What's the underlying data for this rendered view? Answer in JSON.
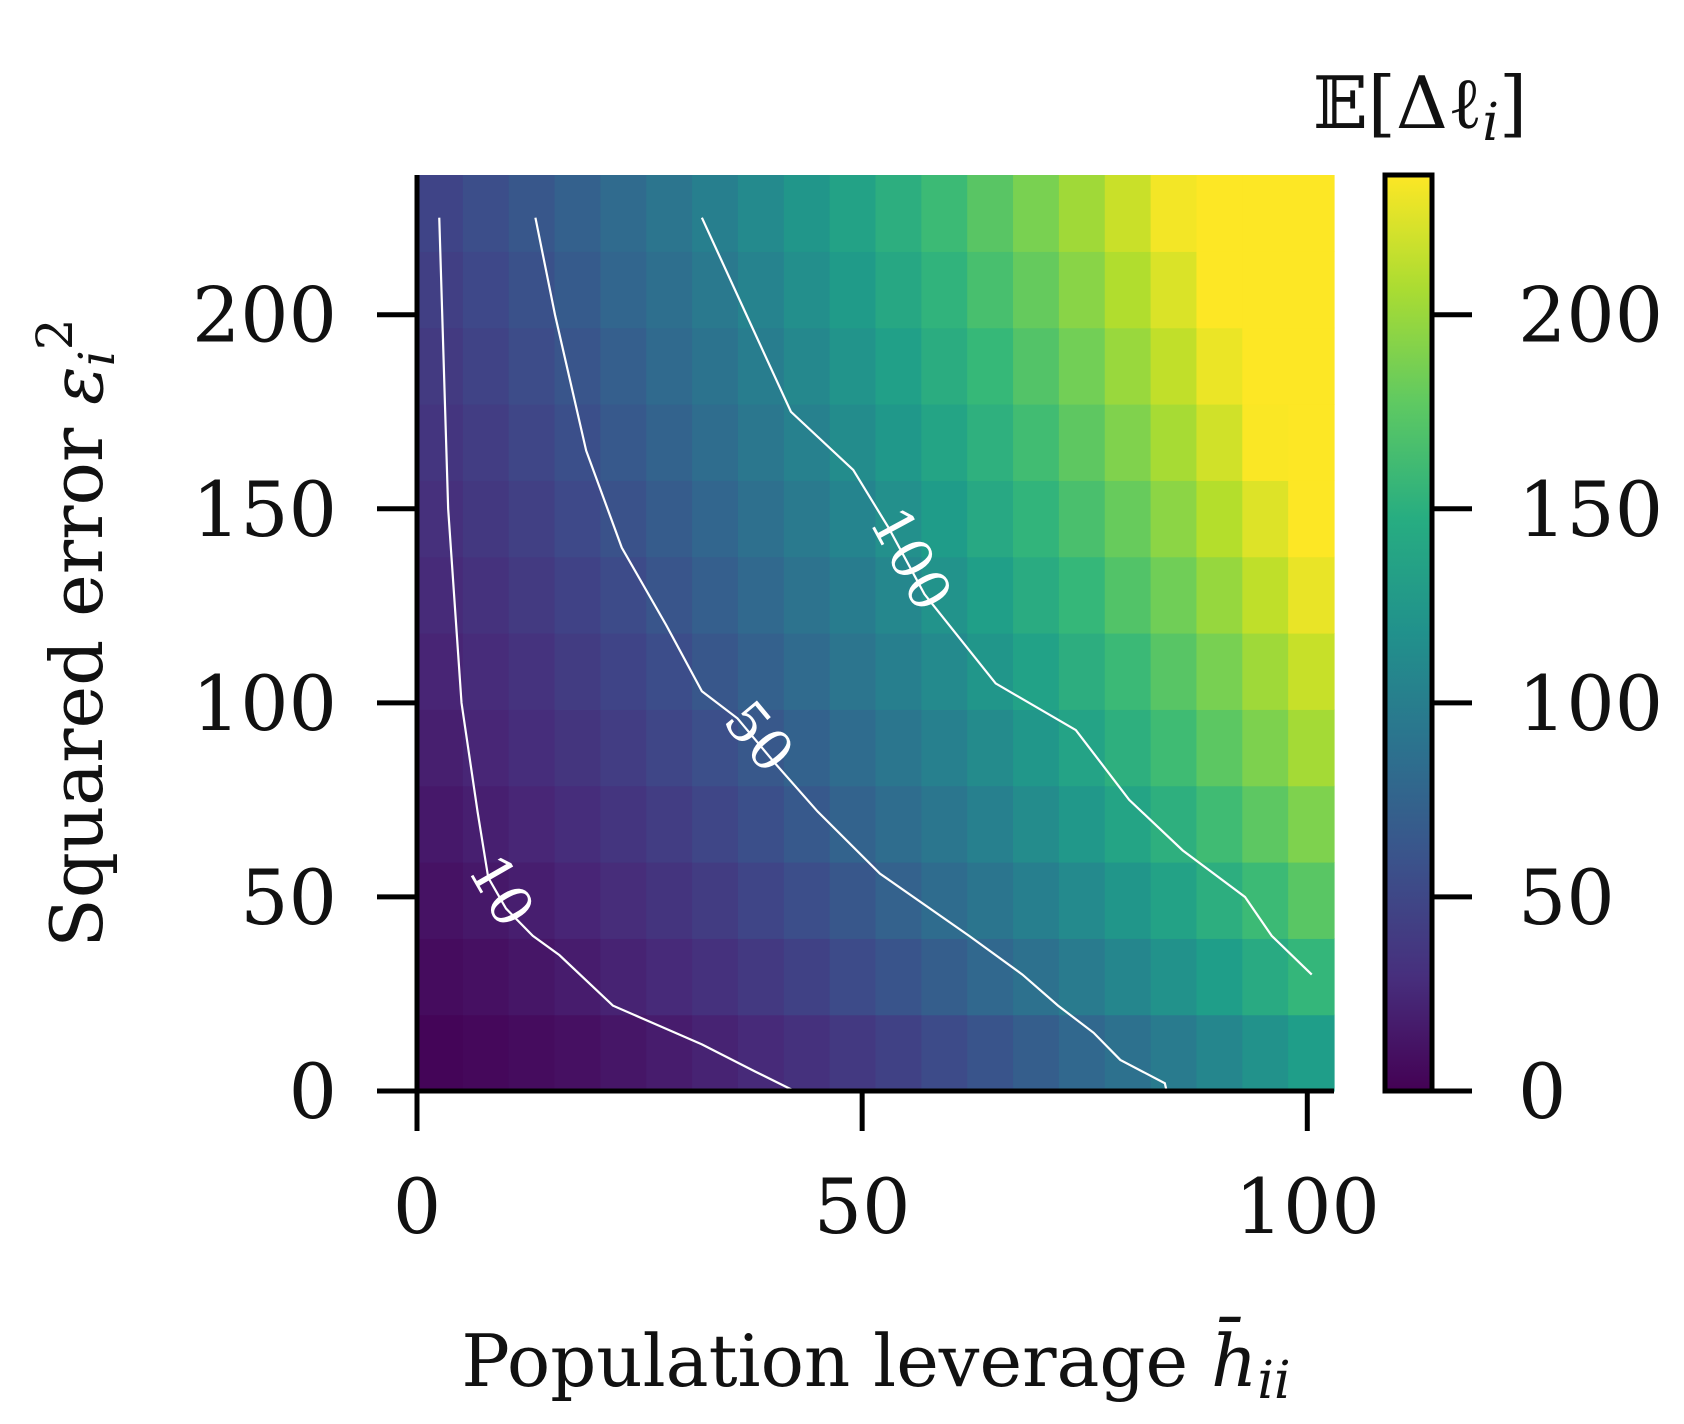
{
  "chart_data": {
    "type": "heatmap",
    "colormap": "viridis",
    "xlabel": "Population leverage ",
    "xlabel_math": "h̄",
    "xlabel_sub": "ii",
    "ylabel": "Squared error ",
    "ylabel_math": "ε",
    "ylabel_sub": "i",
    "ylabel_sup": "2",
    "colorbar_label": "𝔼[Δℓ",
    "colorbar_label_sub": "i",
    "colorbar_label_end": "]",
    "x_ticks": [
      "0",
      "50",
      "100"
    ],
    "x_tick_values": [
      0,
      50,
      100
    ],
    "y_ticks": [
      "0",
      "50",
      "100",
      "150",
      "200"
    ],
    "y_tick_values": [
      0,
      50,
      100,
      150,
      200
    ],
    "colorbar_ticks": [
      "0",
      "50",
      "100",
      "150",
      "200"
    ],
    "colorbar_tick_values": [
      0,
      50,
      100,
      150,
      200
    ],
    "xlim": [
      0,
      103
    ],
    "ylim": [
      0,
      236
    ],
    "color_range": [
      0,
      236
    ],
    "grid": false,
    "grid_cols": 20,
    "grid_rows": 12,
    "contours": [
      {
        "level": 10,
        "label": "10",
        "points": [
          [
            2.5,
            225
          ],
          [
            3.5,
            150
          ],
          [
            5,
            100
          ],
          [
            6.8,
            72
          ],
          [
            8,
            55
          ],
          [
            10,
            47
          ],
          [
            13,
            40
          ],
          [
            16,
            35
          ],
          [
            22,
            22
          ],
          [
            27,
            17
          ],
          [
            32,
            12
          ],
          [
            38,
            5
          ],
          [
            42.4,
            0
          ]
        ]
      },
      {
        "level": 50,
        "label": "50",
        "points": [
          [
            13.3,
            225
          ],
          [
            15.5,
            200
          ],
          [
            19,
            165
          ],
          [
            23,
            140
          ],
          [
            28,
            120
          ],
          [
            32,
            103
          ],
          [
            36,
            96
          ],
          [
            40,
            85
          ],
          [
            45,
            72
          ],
          [
            52,
            56
          ],
          [
            62,
            40
          ],
          [
            68,
            30
          ],
          [
            72,
            22
          ],
          [
            76,
            15
          ],
          [
            79,
            8
          ],
          [
            84,
            2
          ],
          [
            84.2,
            0
          ]
        ]
      },
      {
        "level": 100,
        "label": "100",
        "points": [
          [
            32,
            225
          ],
          [
            37,
            200
          ],
          [
            42,
            175
          ],
          [
            49,
            160
          ],
          [
            53,
            145
          ],
          [
            57,
            128
          ],
          [
            65,
            105
          ],
          [
            74,
            93
          ],
          [
            80,
            75
          ],
          [
            86,
            62
          ],
          [
            93,
            50
          ],
          [
            96,
            40
          ],
          [
            100.5,
            30
          ]
        ]
      }
    ]
  }
}
